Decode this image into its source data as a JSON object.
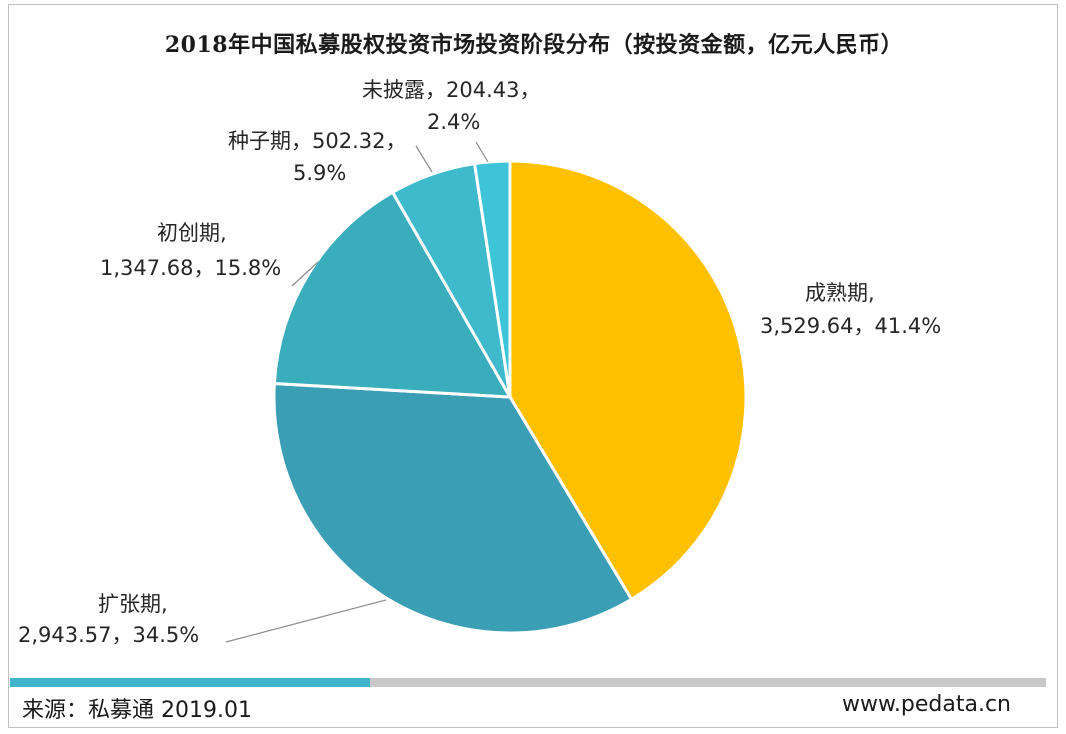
{
  "chart_data": {
    "type": "pie",
    "title": "2018年中国私募股权投资市场投资阶段分布（按投资金额，亿元人民币）",
    "slices": [
      {
        "name": "成熟期",
        "value": 3529.64,
        "value_label": "3,529.64",
        "percent": 41.4,
        "percent_label": "41.4%",
        "color": "#FFC000"
      },
      {
        "name": "扩张期",
        "value": 2943.57,
        "value_label": "2,943.57",
        "percent": 34.5,
        "percent_label": "34.5%",
        "color": "#3A9EB5"
      },
      {
        "name": "初创期",
        "value": 1347.68,
        "value_label": "1,347.68",
        "percent": 15.8,
        "percent_label": "15.8%",
        "color": "#3AADBD"
      },
      {
        "name": "种子期",
        "value": 502.32,
        "value_label": "502.32",
        "percent": 5.9,
        "percent_label": "5.9%",
        "color": "#3FB9CC"
      },
      {
        "name": "未披露",
        "value": 204.43,
        "value_label": "204.43",
        "percent": 2.4,
        "percent_label": "2.4%",
        "color": "#3DC4D8"
      }
    ],
    "start_angle": "12 o'clock, clockwise"
  },
  "footer": {
    "source": "来源：私募通 2019.01",
    "website": "www.pedata.cn",
    "accent_color": "#3FB4CC"
  }
}
